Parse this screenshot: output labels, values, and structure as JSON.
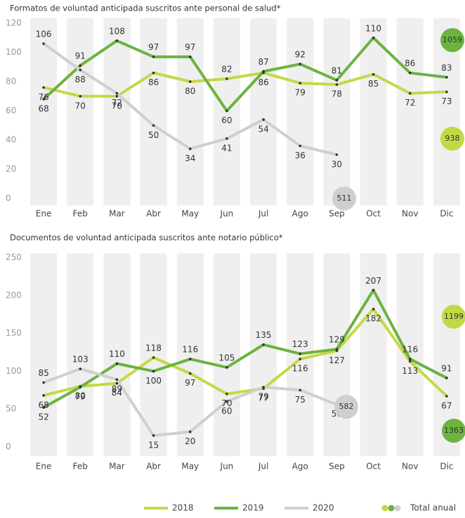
{
  "chart_data": [
    {
      "type": "line",
      "title": "Formatos de voluntad anticipada suscritos ante personal de salud*",
      "categories": [
        "Ene",
        "Feb",
        "Mar",
        "Abr",
        "May",
        "Jun",
        "Jul",
        "Ago",
        "Sep",
        "Oct",
        "Nov",
        "Dic"
      ],
      "ylim": [
        0,
        120
      ],
      "yticks": [
        0,
        20,
        40,
        60,
        80,
        100,
        120
      ],
      "grid": false,
      "series": [
        {
          "name": "2018",
          "color": "#c3d944",
          "values": [
            76,
            70,
            70,
            86,
            80,
            82,
            86,
            79,
            78,
            85,
            72,
            73
          ],
          "total": 938
        },
        {
          "name": "2019",
          "color": "#6cb33f",
          "values": [
            68,
            91,
            108,
            97,
            97,
            60,
            87,
            92,
            81,
            110,
            86,
            83
          ],
          "total": 1059
        },
        {
          "name": "2020",
          "color": "#cfcfcf",
          "values": [
            106,
            88,
            72,
            50,
            34,
            41,
            54,
            36,
            30,
            null,
            null,
            null
          ],
          "total": 511
        }
      ]
    },
    {
      "type": "line",
      "title": "Documentos de voluntad anticipada suscritos ante notario público*",
      "categories": [
        "Ene",
        "Feb",
        "Mar",
        "Abr",
        "May",
        "Jun",
        "Jul",
        "Ago",
        "Sep",
        "Oct",
        "Nov",
        "Dic"
      ],
      "ylim": [
        0,
        250
      ],
      "yticks": [
        0,
        50,
        100,
        150,
        200,
        250
      ],
      "grid": false,
      "series": [
        {
          "name": "2018",
          "color": "#c3d944",
          "values": [
            68,
            80,
            84,
            118,
            97,
            70,
            77,
            116,
            127,
            182,
            113,
            67
          ],
          "total": 1199
        },
        {
          "name": "2019",
          "color": "#6cb33f",
          "values": [
            52,
            79,
            110,
            100,
            116,
            105,
            135,
            123,
            129,
            207,
            116,
            91
          ],
          "total": 1363
        },
        {
          "name": "2020",
          "color": "#cfcfcf",
          "values": [
            85,
            103,
            89,
            15,
            20,
            60,
            79,
            75,
            56,
            null,
            null,
            null
          ],
          "total": 582
        }
      ]
    }
  ],
  "legend_total_label": "Total anual"
}
